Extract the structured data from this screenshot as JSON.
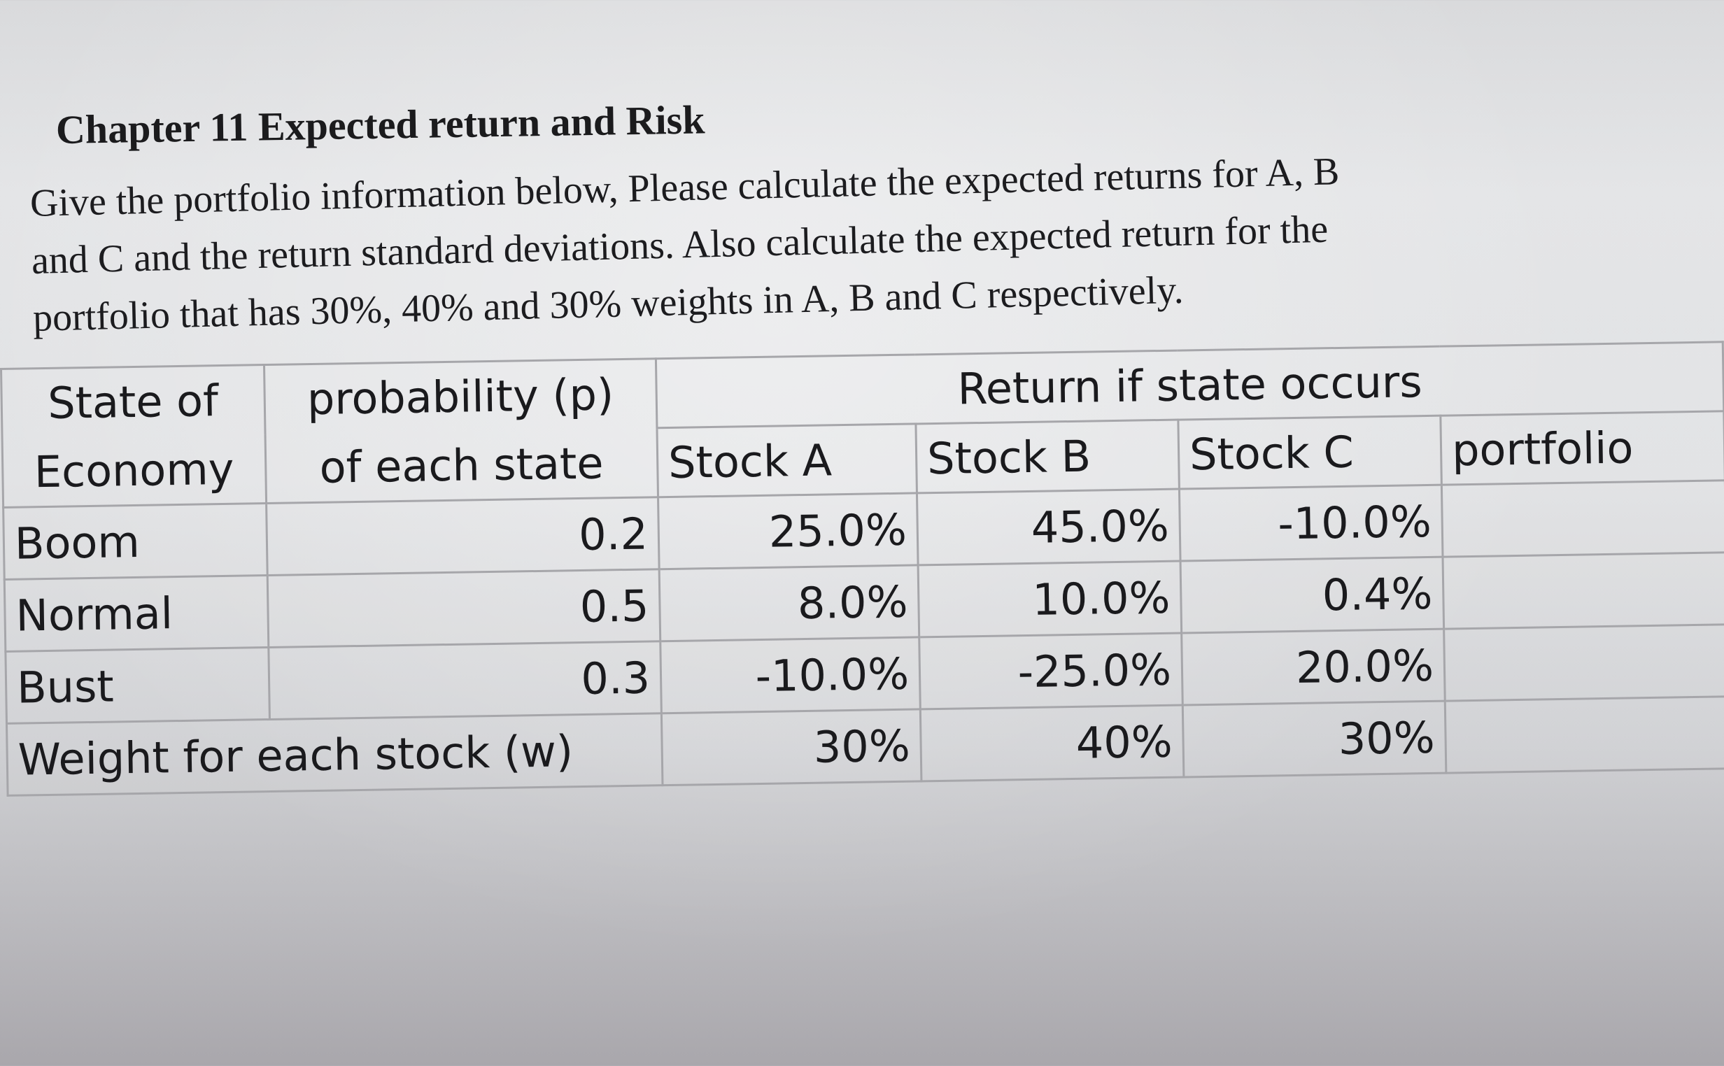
{
  "document": {
    "title": "Chapter 11 Expected return and Risk",
    "instructions": [
      "Give the portfolio information below, Please calculate the expected returns for A, B",
      "and C and the return standard deviations. Also calculate the expected return for the",
      "portfolio that has 30%, 40% and 30% weights in A, B and C respectively."
    ]
  },
  "table": {
    "header": {
      "state_line1": "State of",
      "state_line2": "Economy",
      "prob_line1": "probability (p)",
      "prob_line2": "of each state",
      "group": "Return if state occurs",
      "stock_a": "Stock A",
      "stock_b": "Stock B",
      "stock_c": "Stock C",
      "portfolio": "portfolio"
    },
    "rows": [
      {
        "state": "Boom",
        "p": "0.2",
        "a": "25.0%",
        "b": "45.0%",
        "c": "-10.0%",
        "portfolio": ""
      },
      {
        "state": "Normal",
        "p": "0.5",
        "a": "8.0%",
        "b": "10.0%",
        "c": "0.4%",
        "portfolio": ""
      },
      {
        "state": "Bust",
        "p": "0.3",
        "a": "-10.0%",
        "b": "-25.0%",
        "c": "20.0%",
        "portfolio": ""
      }
    ],
    "weights": {
      "label": "Weight for each stock (w)",
      "a": "30%",
      "b": "40%",
      "c": "30%",
      "portfolio": ""
    }
  }
}
